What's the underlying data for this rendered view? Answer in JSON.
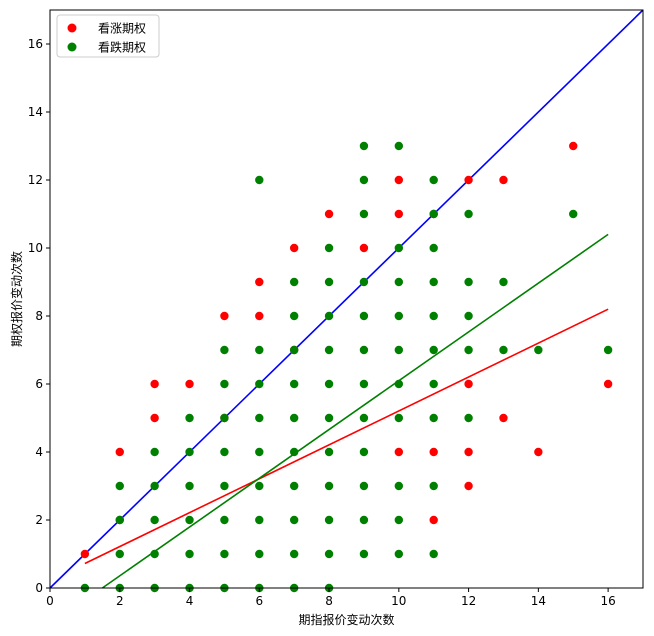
{
  "chart_data": {
    "type": "scatter",
    "xlabel": "期指报价变动次数",
    "ylabel": "期权报价变动次数",
    "xlim": [
      0,
      17
    ],
    "ylim": [
      0,
      17
    ],
    "xticks": [
      0,
      2,
      4,
      6,
      8,
      10,
      12,
      14,
      16
    ],
    "yticks": [
      0,
      2,
      4,
      6,
      8,
      10,
      12,
      14,
      16
    ],
    "grid": false,
    "legend_position": "top-left",
    "series": [
      {
        "name": "看涨期权",
        "color": "#ff0000",
        "points": [
          [
            1,
            1
          ],
          [
            2,
            2
          ],
          [
            2,
            4
          ],
          [
            3,
            5
          ],
          [
            3,
            6
          ],
          [
            4,
            6
          ],
          [
            5,
            5
          ],
          [
            5,
            8
          ],
          [
            6,
            8
          ],
          [
            6,
            9
          ],
          [
            7,
            7
          ],
          [
            7,
            10
          ],
          [
            8,
            11
          ],
          [
            9,
            10
          ],
          [
            10,
            11
          ],
          [
            10,
            12
          ],
          [
            10,
            4
          ],
          [
            11,
            2
          ],
          [
            11,
            4
          ],
          [
            11,
            11
          ],
          [
            12,
            12
          ],
          [
            12,
            6
          ],
          [
            12,
            4
          ],
          [
            12,
            3
          ],
          [
            13,
            12
          ],
          [
            13,
            5
          ],
          [
            14,
            4
          ],
          [
            15,
            13
          ],
          [
            16,
            6
          ]
        ]
      },
      {
        "name": "看跌期权",
        "color": "#008000",
        "points": [
          [
            1,
            0
          ],
          [
            2,
            0
          ],
          [
            2,
            1
          ],
          [
            2,
            2
          ],
          [
            2,
            3
          ],
          [
            3,
            0
          ],
          [
            3,
            1
          ],
          [
            3,
            2
          ],
          [
            3,
            3
          ],
          [
            3,
            4
          ],
          [
            4,
            0
          ],
          [
            4,
            1
          ],
          [
            4,
            2
          ],
          [
            4,
            3
          ],
          [
            4,
            4
          ],
          [
            4,
            5
          ],
          [
            5,
            0
          ],
          [
            5,
            1
          ],
          [
            5,
            2
          ],
          [
            5,
            3
          ],
          [
            5,
            4
          ],
          [
            5,
            5
          ],
          [
            5,
            6
          ],
          [
            5,
            7
          ],
          [
            6,
            0
          ],
          [
            6,
            1
          ],
          [
            6,
            2
          ],
          [
            6,
            3
          ],
          [
            6,
            4
          ],
          [
            6,
            5
          ],
          [
            6,
            6
          ],
          [
            6,
            7
          ],
          [
            6,
            12
          ],
          [
            7,
            0
          ],
          [
            7,
            1
          ],
          [
            7,
            2
          ],
          [
            7,
            3
          ],
          [
            7,
            4
          ],
          [
            7,
            5
          ],
          [
            7,
            6
          ],
          [
            7,
            7
          ],
          [
            7,
            8
          ],
          [
            7,
            9
          ],
          [
            8,
            0
          ],
          [
            8,
            1
          ],
          [
            8,
            2
          ],
          [
            8,
            3
          ],
          [
            8,
            4
          ],
          [
            8,
            5
          ],
          [
            8,
            6
          ],
          [
            8,
            7
          ],
          [
            8,
            8
          ],
          [
            8,
            9
          ],
          [
            8,
            10
          ],
          [
            9,
            1
          ],
          [
            9,
            2
          ],
          [
            9,
            3
          ],
          [
            9,
            4
          ],
          [
            9,
            5
          ],
          [
            9,
            6
          ],
          [
            9,
            7
          ],
          [
            9,
            8
          ],
          [
            9,
            9
          ],
          [
            9,
            11
          ],
          [
            9,
            12
          ],
          [
            9,
            13
          ],
          [
            10,
            1
          ],
          [
            10,
            2
          ],
          [
            10,
            3
          ],
          [
            10,
            5
          ],
          [
            10,
            6
          ],
          [
            10,
            7
          ],
          [
            10,
            8
          ],
          [
            10,
            9
          ],
          [
            10,
            10
          ],
          [
            10,
            13
          ],
          [
            11,
            1
          ],
          [
            11,
            3
          ],
          [
            11,
            5
          ],
          [
            11,
            6
          ],
          [
            11,
            7
          ],
          [
            11,
            8
          ],
          [
            11,
            9
          ],
          [
            11,
            10
          ],
          [
            11,
            11
          ],
          [
            11,
            12
          ],
          [
            12,
            5
          ],
          [
            12,
            7
          ],
          [
            12,
            8
          ],
          [
            12,
            9
          ],
          [
            12,
            11
          ],
          [
            13,
            7
          ],
          [
            13,
            9
          ],
          [
            14,
            7
          ],
          [
            15,
            11
          ],
          [
            16,
            7
          ]
        ]
      }
    ],
    "lines": [
      {
        "color": "#0000ff",
        "x": [
          0,
          17
        ],
        "y": [
          0,
          17
        ]
      },
      {
        "color": "#ff0000",
        "x": [
          1,
          16
        ],
        "y": [
          0.72,
          8.2
        ]
      },
      {
        "color": "#008000",
        "x": [
          1.5,
          16
        ],
        "y": [
          0,
          10.4
        ]
      }
    ]
  }
}
